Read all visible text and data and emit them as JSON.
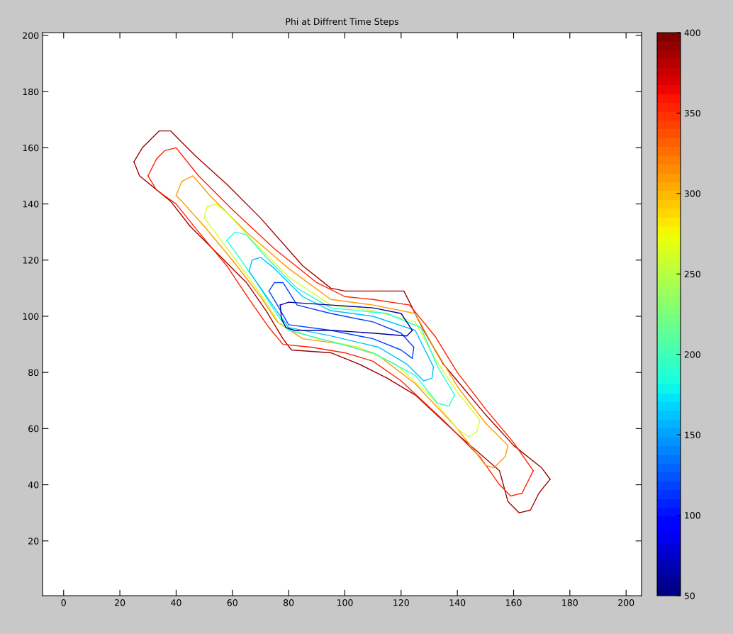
{
  "chart_data": {
    "type": "line",
    "title": "Phi at Diffrent Time Steps",
    "xlim": [
      -7.5,
      205.5
    ],
    "ylim": [
      0.5,
      201
    ],
    "xticks": [
      0,
      20,
      40,
      60,
      80,
      100,
      120,
      140,
      160,
      180,
      200
    ],
    "yticks": [
      20,
      40,
      60,
      80,
      100,
      120,
      140,
      160,
      180,
      200
    ],
    "clim": [
      50,
      400
    ],
    "cticks": [
      50,
      100,
      150,
      200,
      250,
      300,
      350,
      400
    ],
    "grid": false,
    "legend": false,
    "series": [
      {
        "color": "#a00000",
        "x": [
          25,
          27,
          38,
          45,
          55,
          65,
          72,
          78,
          81,
          95,
          105,
          115,
          125,
          140,
          155,
          158,
          162,
          166,
          169,
          173
        ],
        "values": [
          155,
          150,
          141,
          132,
          122,
          112,
          102,
          92,
          88,
          87,
          83,
          78,
          72,
          58,
          45,
          34,
          30,
          31,
          37,
          42
        ]
      },
      {
        "color": "#a00000",
        "x": [
          25,
          28,
          34,
          38,
          42,
          47,
          58,
          70,
          85,
          95,
          100,
          121,
          128,
          135,
          140,
          150,
          160,
          170,
          173
        ],
        "values": [
          155,
          160,
          166,
          166,
          162,
          157,
          147,
          135,
          118,
          110,
          109,
          109,
          95,
          83,
          77,
          65,
          54,
          46,
          42
        ]
      },
      {
        "color": "#ff2000",
        "x": [
          30,
          33,
          40,
          48,
          58,
          66,
          73,
          78,
          88,
          100,
          110,
          120,
          135,
          148,
          155,
          159,
          163,
          167
        ],
        "values": [
          150,
          145,
          140,
          130,
          118,
          106,
          96,
          90,
          89,
          87,
          84,
          77,
          63,
          50,
          40,
          36,
          37,
          45
        ]
      },
      {
        "color": "#ff2000",
        "x": [
          30,
          33,
          36,
          40,
          48,
          60,
          75,
          90,
          100,
          110,
          123,
          132,
          140,
          150,
          160,
          167
        ],
        "values": [
          150,
          156,
          159,
          160,
          150,
          138,
          124,
          112,
          107,
          106,
          104,
          93,
          80,
          67,
          55,
          45
        ]
      },
      {
        "color": "#ff9900",
        "x": [
          40,
          42,
          50,
          60,
          70,
          76,
          85,
          100,
          112,
          125,
          140,
          150,
          153,
          157,
          158
        ],
        "values": [
          143,
          141,
          132,
          120,
          107,
          98,
          92,
          90,
          86,
          76,
          60,
          47,
          46,
          50,
          54
        ]
      },
      {
        "color": "#ff9900",
        "x": [
          40,
          42,
          46,
          52,
          65,
          80,
          95,
          110,
          125,
          131,
          140,
          150,
          158
        ],
        "values": [
          143,
          148,
          150,
          143,
          130,
          117,
          106,
          104,
          101,
          90,
          75,
          62,
          54
        ]
      },
      {
        "color": "#d4ff2b",
        "x": [
          50,
          53,
          62,
          70,
          77,
          90,
          105,
          118,
          130,
          140,
          144,
          147,
          148
        ],
        "values": [
          135,
          131,
          119,
          108,
          97,
          92,
          89,
          83,
          72,
          60,
          57,
          59,
          63
        ]
      },
      {
        "color": "#d4ff2b",
        "x": [
          50,
          51,
          54,
          58,
          68,
          80,
          95,
          110,
          125,
          132,
          140,
          148
        ],
        "values": [
          135,
          139,
          140,
          137,
          126,
          114,
          104,
          102,
          98,
          85,
          73,
          63
        ]
      },
      {
        "color": "#20ffd8",
        "x": [
          58,
          61,
          68,
          75,
          80,
          95,
          110,
          125,
          133,
          137,
          139
        ],
        "values": [
          127,
          123,
          113,
          102,
          95,
          91,
          87,
          79,
          69,
          68,
          72
        ]
      },
      {
        "color": "#20ffd8",
        "x": [
          58,
          61,
          65,
          72,
          83,
          95,
          115,
          127,
          133,
          139
        ],
        "values": [
          127,
          130,
          129,
          121,
          110,
          103,
          101,
          96,
          82,
          72
        ]
      },
      {
        "color": "#00c0ff",
        "x": [
          66,
          68,
          75,
          80,
          95,
          112,
          122,
          128,
          131,
          131.5
        ],
        "values": [
          116,
          113,
          103,
          96,
          93,
          89,
          83,
          77,
          78,
          82
        ]
      },
      {
        "color": "#00c0ff",
        "x": [
          66,
          67,
          70,
          75,
          85,
          95,
          110,
          125,
          131.5
        ],
        "values": [
          116,
          120,
          121,
          117,
          107,
          102,
          100,
          95,
          82
        ]
      },
      {
        "color": "#0040ff",
        "x": [
          73,
          76,
          80,
          95,
          110,
          120,
          124,
          124.5
        ],
        "values": [
          109,
          104,
          97,
          95,
          92,
          88,
          85,
          89
        ]
      },
      {
        "color": "#0040ff",
        "x": [
          73,
          75,
          78,
          83,
          95,
          110,
          120,
          124.5
        ],
        "values": [
          109,
          112,
          112,
          104,
          101,
          98,
          94,
          89
        ]
      },
      {
        "color": "#0000a0",
        "x": [
          77,
          77.5,
          79,
          82,
          95,
          110,
          122,
          124
        ],
        "values": [
          104,
          99,
          96,
          95,
          95,
          94,
          93,
          95
        ]
      },
      {
        "color": "#0000a0",
        "x": [
          77,
          80,
          95,
          110,
          120,
          124
        ],
        "values": [
          104,
          105,
          104,
          103,
          101,
          95
        ]
      }
    ]
  }
}
